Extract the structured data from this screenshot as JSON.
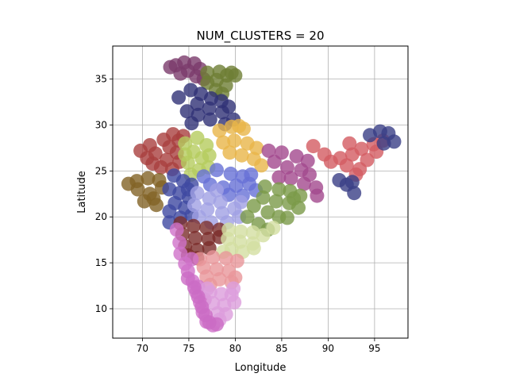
{
  "chart_data": {
    "type": "scatter",
    "title": "NUM_CLUSTERS = 20",
    "xlabel": "Longitude",
    "ylabel": "Latitude",
    "xlim": [
      66.8,
      98.6
    ],
    "ylim": [
      6.8,
      38.6
    ],
    "xticks": [
      70,
      75,
      80,
      85,
      90,
      95
    ],
    "yticks": [
      10,
      15,
      20,
      25,
      30,
      35
    ],
    "grid": true,
    "legend": "none",
    "marker_alpha": 0.8,
    "clusters": [
      {
        "color": "#7b3b6c",
        "points": [
          [
            73.6,
            36.5
          ],
          [
            74.5,
            36.8
          ],
          [
            75.6,
            36.7
          ],
          [
            76.2,
            36.1
          ],
          [
            74.9,
            35.9
          ],
          [
            75.8,
            35.3
          ],
          [
            74.1,
            35.6
          ],
          [
            76.6,
            35.0
          ],
          [
            73.0,
            36.3
          ]
        ]
      },
      {
        "color": "#6e7e34",
        "points": [
          [
            77.0,
            35.7
          ],
          [
            78.3,
            35.8
          ],
          [
            79.1,
            35.4
          ],
          [
            79.6,
            35.7
          ],
          [
            78.0,
            34.9
          ],
          [
            79.0,
            34.3
          ],
          [
            77.9,
            33.8
          ],
          [
            77.0,
            34.6
          ],
          [
            80.0,
            35.4
          ],
          [
            78.6,
            33.4
          ]
        ]
      },
      {
        "color": "#2f3176",
        "points": [
          [
            75.2,
            33.8
          ],
          [
            76.3,
            33.4
          ],
          [
            77.4,
            32.9
          ],
          [
            78.5,
            32.6
          ],
          [
            75.9,
            32.3
          ],
          [
            77.2,
            31.8
          ],
          [
            78.6,
            31.4
          ],
          [
            76.0,
            31.1
          ],
          [
            77.3,
            30.6
          ],
          [
            78.9,
            30.1
          ],
          [
            75.3,
            30.2
          ],
          [
            79.8,
            30.6
          ],
          [
            74.8,
            31.5
          ],
          [
            79.3,
            32.0
          ],
          [
            73.9,
            33.0
          ]
        ]
      },
      {
        "color": "#a9403e",
        "points": [
          [
            69.8,
            27.2
          ],
          [
            70.8,
            27.8
          ],
          [
            72.3,
            28.4
          ],
          [
            73.3,
            29.0
          ],
          [
            73.9,
            28.3
          ],
          [
            71.4,
            26.9
          ],
          [
            72.6,
            26.2
          ],
          [
            73.7,
            27.0
          ],
          [
            70.5,
            26.4
          ],
          [
            72.0,
            25.4
          ],
          [
            73.2,
            25.2
          ],
          [
            74.0,
            26.0
          ],
          [
            71.1,
            25.8
          ],
          [
            72.9,
            27.6
          ],
          [
            74.4,
            28.8
          ]
        ]
      },
      {
        "color": "#b5cc5e",
        "points": [
          [
            74.6,
            28.0
          ],
          [
            75.9,
            28.6
          ],
          [
            76.9,
            27.8
          ],
          [
            75.5,
            27.1
          ],
          [
            76.4,
            26.4
          ],
          [
            77.2,
            26.7
          ],
          [
            74.9,
            25.9
          ],
          [
            76.1,
            25.1
          ],
          [
            75.2,
            24.6
          ],
          [
            77.1,
            25.4
          ],
          [
            74.6,
            26.8
          ]
        ]
      },
      {
        "color": "#e8b548",
        "points": [
          [
            78.3,
            29.4
          ],
          [
            79.6,
            29.8
          ],
          [
            80.9,
            29.6
          ],
          [
            78.7,
            28.1
          ],
          [
            79.9,
            28.3
          ],
          [
            81.3,
            28.0
          ],
          [
            82.3,
            27.5
          ],
          [
            80.7,
            26.7
          ],
          [
            82.0,
            26.3
          ],
          [
            79.4,
            27.0
          ],
          [
            82.8,
            25.6
          ],
          [
            80.4,
            29.9
          ]
        ]
      },
      {
        "color": "#a2488d",
        "points": [
          [
            83.6,
            27.2
          ],
          [
            85.0,
            27.0
          ],
          [
            86.6,
            26.6
          ],
          [
            87.8,
            26.1
          ],
          [
            84.2,
            26.0
          ],
          [
            85.6,
            25.4
          ],
          [
            87.1,
            25.1
          ],
          [
            86.0,
            24.2
          ],
          [
            87.4,
            23.6
          ],
          [
            88.7,
            23.2
          ],
          [
            88.8,
            22.3
          ],
          [
            84.7,
            24.3
          ],
          [
            88.0,
            24.6
          ]
        ]
      },
      {
        "color": "#d35b62",
        "points": [
          [
            88.4,
            27.7
          ],
          [
            89.6,
            26.8
          ],
          [
            91.3,
            26.4
          ],
          [
            92.6,
            26.8
          ],
          [
            93.6,
            27.4
          ],
          [
            94.9,
            27.9
          ],
          [
            95.9,
            28.3
          ],
          [
            92.3,
            28.0
          ],
          [
            90.3,
            26.0
          ],
          [
            93.4,
            25.2
          ],
          [
            94.2,
            26.2
          ],
          [
            93.0,
            24.6
          ],
          [
            92.0,
            25.6
          ],
          [
            95.2,
            27.1
          ]
        ]
      },
      {
        "color": "#3a3f86",
        "points": [
          [
            94.5,
            28.9
          ],
          [
            95.6,
            29.3
          ],
          [
            96.5,
            29.1
          ],
          [
            97.1,
            28.2
          ],
          [
            91.2,
            24.0
          ],
          [
            92.0,
            23.5
          ],
          [
            92.8,
            22.6
          ],
          [
            92.6,
            23.8
          ],
          [
            96.0,
            28.0
          ]
        ]
      },
      {
        "color": "#826326",
        "points": [
          [
            68.5,
            23.6
          ],
          [
            69.4,
            23.9
          ],
          [
            70.6,
            24.2
          ],
          [
            71.8,
            24.0
          ],
          [
            69.5,
            23.0
          ],
          [
            70.8,
            22.5
          ],
          [
            72.1,
            23.2
          ],
          [
            70.2,
            21.7
          ],
          [
            71.5,
            21.3
          ],
          [
            71.2,
            22.0
          ]
        ]
      },
      {
        "color": "#3f48a1",
        "points": [
          [
            73.4,
            24.5
          ],
          [
            74.4,
            23.9
          ],
          [
            75.3,
            23.5
          ],
          [
            72.9,
            23.0
          ],
          [
            74.0,
            22.6
          ],
          [
            75.0,
            22.1
          ],
          [
            73.5,
            21.5
          ],
          [
            74.6,
            21.0
          ],
          [
            72.9,
            20.6
          ],
          [
            74.1,
            19.9
          ],
          [
            75.3,
            20.2
          ],
          [
            72.9,
            19.4
          ],
          [
            74.9,
            23.0
          ]
        ]
      },
      {
        "color": "#6670d6",
        "points": [
          [
            76.6,
            24.4
          ],
          [
            78.0,
            25.1
          ],
          [
            79.5,
            24.7
          ],
          [
            80.8,
            24.4
          ],
          [
            77.3,
            23.5
          ],
          [
            78.7,
            23.2
          ],
          [
            80.1,
            23.4
          ],
          [
            81.5,
            23.6
          ],
          [
            82.2,
            22.9
          ],
          [
            79.3,
            22.4
          ],
          [
            80.8,
            22.3
          ],
          [
            81.7,
            24.6
          ]
        ]
      },
      {
        "color": "#a0a0e3",
        "points": [
          [
            75.9,
            22.6
          ],
          [
            77.2,
            22.0
          ],
          [
            78.4,
            21.6
          ],
          [
            75.6,
            21.3
          ],
          [
            77.0,
            20.8
          ],
          [
            78.6,
            20.4
          ],
          [
            79.9,
            20.9
          ],
          [
            76.1,
            20.0
          ],
          [
            77.4,
            19.4
          ],
          [
            79.1,
            19.4
          ],
          [
            80.4,
            20.0
          ],
          [
            80.6,
            21.6
          ],
          [
            78.0,
            22.9
          ]
        ]
      },
      {
        "color": "#7a9a48",
        "points": [
          [
            83.2,
            23.3
          ],
          [
            84.7,
            23.0
          ],
          [
            85.9,
            22.8
          ],
          [
            87.0,
            22.3
          ],
          [
            83.0,
            22.1
          ],
          [
            84.4,
            21.7
          ],
          [
            85.8,
            21.5
          ],
          [
            86.8,
            21.0
          ],
          [
            82.0,
            21.2
          ],
          [
            83.5,
            20.5
          ],
          [
            84.7,
            20.0
          ],
          [
            85.6,
            19.9
          ],
          [
            81.3,
            20.0
          ],
          [
            82.5,
            19.2
          ],
          [
            83.5,
            18.6
          ],
          [
            86.3,
            22.0
          ]
        ]
      },
      {
        "color": "#7b2d2b",
        "points": [
          [
            74.1,
            19.3
          ],
          [
            75.5,
            19.0
          ],
          [
            76.9,
            18.8
          ],
          [
            78.3,
            18.6
          ],
          [
            74.3,
            18.1
          ],
          [
            75.7,
            17.7
          ],
          [
            77.1,
            17.6
          ],
          [
            74.6,
            16.8
          ],
          [
            75.9,
            16.4
          ],
          [
            77.2,
            16.6
          ],
          [
            74.9,
            15.8
          ],
          [
            75.9,
            15.5
          ],
          [
            78.3,
            17.8
          ]
        ]
      },
      {
        "color": "#d3dea1",
        "points": [
          [
            79.3,
            18.6
          ],
          [
            80.6,
            18.4
          ],
          [
            81.9,
            18.3
          ],
          [
            83.0,
            18.0
          ],
          [
            79.2,
            17.6
          ],
          [
            80.5,
            17.3
          ],
          [
            81.9,
            17.1
          ],
          [
            79.6,
            16.5
          ],
          [
            80.8,
            16.2
          ],
          [
            82.0,
            16.6
          ],
          [
            84.1,
            18.8
          ],
          [
            78.7,
            16.2
          ]
        ]
      },
      {
        "color": "#e8969a",
        "points": [
          [
            76.2,
            15.4
          ],
          [
            77.6,
            15.6
          ],
          [
            79.0,
            15.5
          ],
          [
            80.2,
            15.2
          ],
          [
            76.6,
            14.5
          ],
          [
            78.0,
            14.3
          ],
          [
            79.3,
            14.1
          ],
          [
            80.0,
            13.4
          ],
          [
            76.9,
            13.5
          ],
          [
            78.3,
            13.2
          ],
          [
            79.6,
            12.9
          ],
          [
            77.3,
            12.6
          ]
        ]
      },
      {
        "color": "#cf72c9",
        "points": [
          [
            73.7,
            18.6
          ],
          [
            74.0,
            17.2
          ],
          [
            74.1,
            16.0
          ],
          [
            74.6,
            14.9
          ],
          [
            74.9,
            14.1
          ],
          [
            75.4,
            13.0
          ],
          [
            75.8,
            11.8
          ],
          [
            76.2,
            10.7
          ],
          [
            76.5,
            9.6
          ],
          [
            76.9,
            8.6
          ],
          [
            77.6,
            8.2
          ],
          [
            75.3,
            15.4
          ],
          [
            76.0,
            12.4
          ],
          [
            76.7,
            11.0
          ]
        ]
      },
      {
        "color": "#dc9edc",
        "points": [
          [
            77.3,
            11.8
          ],
          [
            78.5,
            11.6
          ],
          [
            79.6,
            11.5
          ],
          [
            77.6,
            10.6
          ],
          [
            78.8,
            10.4
          ],
          [
            79.9,
            10.7
          ],
          [
            78.1,
            9.5
          ],
          [
            79.0,
            9.4
          ],
          [
            78.3,
            8.8
          ],
          [
            77.0,
            12.2
          ],
          [
            79.8,
            12.2
          ]
        ]
      },
      {
        "color": "#ca6cc4",
        "points": [
          [
            74.9,
            13.3
          ],
          [
            75.6,
            12.3
          ],
          [
            76.0,
            11.3
          ],
          [
            76.4,
            10.2
          ],
          [
            76.8,
            9.3
          ],
          [
            77.2,
            8.5
          ],
          [
            78.0,
            8.3
          ]
        ]
      }
    ]
  }
}
